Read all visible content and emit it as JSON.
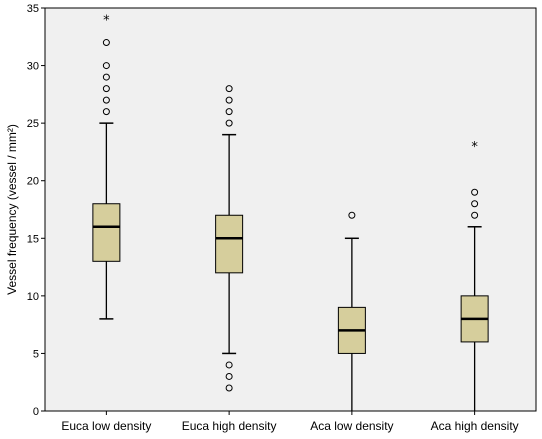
{
  "chart_data": {
    "type": "boxplot",
    "title": "",
    "xlabel": "",
    "ylabel": "Vessel frequency (vessel / mm²)",
    "ylim": [
      0,
      35
    ],
    "yticks": [
      0,
      5,
      10,
      15,
      20,
      25,
      30,
      35
    ],
    "grid": false,
    "colors": {
      "plot_bg": "#f0f0f0",
      "box_fill": "#d6ce9c",
      "stroke": "#000000"
    },
    "categories": [
      "Euca low density",
      "Euca high density",
      "Aca low density",
      "Aca high density"
    ],
    "boxes": [
      {
        "whisker_low": 8,
        "q1": 13,
        "median": 16,
        "q3": 18,
        "whisker_high": 25,
        "outliers": [
          26,
          27,
          28,
          29,
          30,
          32
        ],
        "extremes": [
          34
        ]
      },
      {
        "whisker_low": 5,
        "q1": 12,
        "median": 15,
        "q3": 17,
        "whisker_high": 24,
        "outliers": [
          25,
          26,
          27,
          28,
          4,
          3,
          2
        ],
        "extremes": []
      },
      {
        "whisker_low": 0,
        "q1": 5,
        "median": 7,
        "q3": 9,
        "whisker_high": 15,
        "outliers": [
          17
        ],
        "extremes": []
      },
      {
        "whisker_low": 0,
        "q1": 6,
        "median": 8,
        "q3": 10,
        "whisker_high": 16,
        "outliers": [
          17,
          18,
          19
        ],
        "extremes": [
          23
        ]
      }
    ]
  }
}
